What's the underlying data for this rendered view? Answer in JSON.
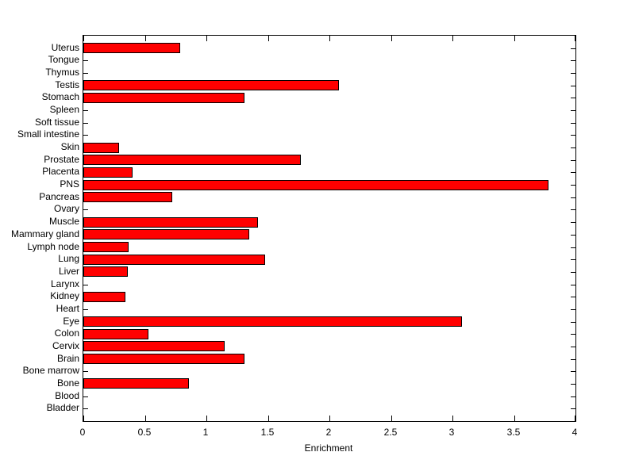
{
  "chart_data": {
    "type": "bar",
    "orientation": "horizontal",
    "title": "",
    "xlabel": "Enrichment",
    "ylabel": "",
    "xlim": [
      0,
      4
    ],
    "xticks": [
      0,
      0.5,
      1,
      1.5,
      2,
      2.5,
      3,
      3.5,
      4
    ],
    "xtick_labels": [
      "0",
      "0.5",
      "1",
      "1.5",
      "2",
      "2.5",
      "3",
      "3.5",
      "4"
    ],
    "grid": false,
    "legend": null,
    "bar_color": "#FF0000",
    "bar_edge_color": "#000000",
    "axis_color": "#000000",
    "background_color": "#FFFFFF",
    "categories_top_to_bottom": [
      "Uterus",
      "Tongue",
      "Thymus",
      "Testis",
      "Stomach",
      "Spleen",
      "Soft tissue",
      "Small intestine",
      "Skin",
      "Prostate",
      "Placenta",
      "PNS",
      "Pancreas",
      "Ovary",
      "Muscle",
      "Mammary gland",
      "Lymph node",
      "Lung",
      "Liver",
      "Larynx",
      "Kidney",
      "Heart",
      "Eye",
      "Colon",
      "Cervix",
      "Brain",
      "Bone marrow",
      "Bone",
      "Blood",
      "Bladder"
    ],
    "values": [
      0.79,
      0,
      0,
      2.08,
      1.31,
      0,
      0,
      0,
      0.29,
      1.77,
      0.4,
      3.78,
      0.72,
      0,
      1.42,
      1.35,
      0.37,
      1.48,
      0.36,
      0,
      0.34,
      0,
      3.08,
      0.53,
      1.15,
      1.31,
      0,
      0.86,
      0,
      0
    ]
  }
}
